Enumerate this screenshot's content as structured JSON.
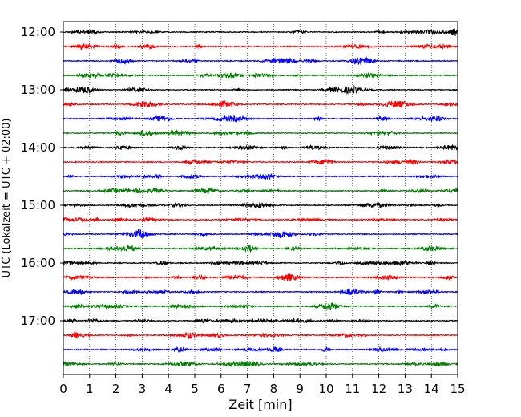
{
  "chart_data": {
    "type": "line",
    "title": "",
    "xlabel": "Zeit  [min]",
    "ylabel": "UTC (Lokalzeit = UTC + 02:00)",
    "xlim": [
      0,
      15
    ],
    "x_ticks": [
      0,
      1,
      2,
      3,
      4,
      5,
      6,
      7,
      8,
      9,
      10,
      11,
      12,
      13,
      14,
      15
    ],
    "x_tick_labels": [
      "0",
      "1",
      "2",
      "3",
      "4",
      "5",
      "6",
      "7",
      "8",
      "9",
      "10",
      "11",
      "12",
      "13",
      "14",
      "15"
    ],
    "y_tick_labels": [
      "12:00",
      "13:00",
      "14:00",
      "15:00",
      "16:00",
      "17:00"
    ],
    "grid": {
      "x": true,
      "y": false,
      "style": "dotted"
    },
    "trace_minutes_per_line": 15,
    "traces_start": "12:00",
    "trace_count": 24,
    "trace_colors": [
      "#000000",
      "#ff0000",
      "#0000ff",
      "#008000"
    ],
    "trace_labels": [
      "12:00",
      "12:15",
      "12:30",
      "12:45",
      "13:00",
      "13:15",
      "13:30",
      "13:45",
      "14:00",
      "14:15",
      "14:30",
      "14:45",
      "15:00",
      "15:15",
      "15:30",
      "15:45",
      "16:00",
      "16:15",
      "16:30",
      "16:45",
      "17:00",
      "17:15",
      "17:30",
      "17:45"
    ]
  }
}
